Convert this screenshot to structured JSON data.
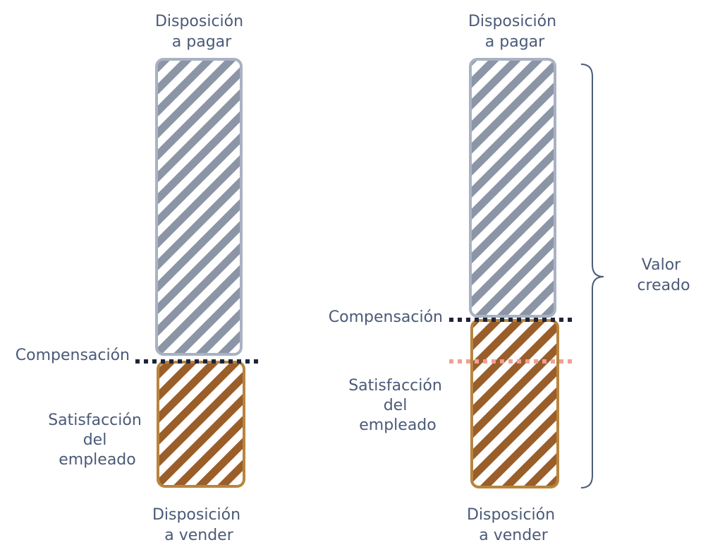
{
  "colors": {
    "gray_bar": "#8b95a5",
    "gray_border": "#a9b2c2",
    "brown_bar": "#9a5e2a",
    "brown_border": "#b8843e",
    "dark_dots": "#1e2538",
    "pink_dots": "#f0a098",
    "text": "#4b5a78",
    "brace": "#4b5a78"
  },
  "left": {
    "top_label": [
      "Disposición",
      "a pagar"
    ],
    "bottom_label": [
      "Disposición",
      "a vender"
    ],
    "compensation_label": "Compensación",
    "satisfaction_label": [
      "Satisfacción",
      "del",
      "empleado"
    ]
  },
  "right": {
    "top_label": [
      "Disposición",
      "a pagar"
    ],
    "bottom_label": [
      "Disposición",
      "a vender"
    ],
    "compensation_label": "Compensación",
    "satisfaction_label": [
      "Satisfacción",
      "del",
      "empleado"
    ],
    "value_label": [
      "Valor",
      "creado"
    ]
  }
}
